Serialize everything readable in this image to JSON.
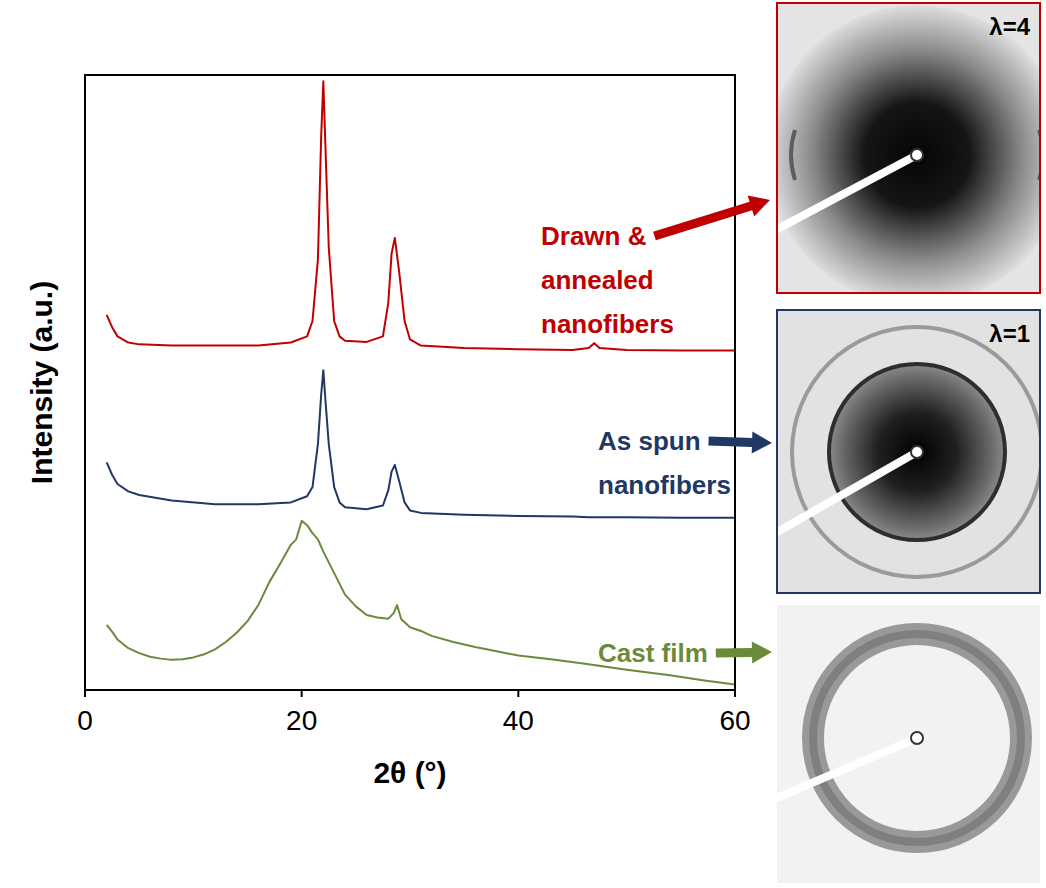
{
  "chart_data": {
    "type": "line",
    "x_label": "2θ (°)",
    "y_label": "Intensity (a.u.)",
    "xlim": [
      0,
      60
    ],
    "xticks": [
      0,
      20,
      40,
      60
    ],
    "ylim": [
      0,
      100
    ],
    "tick_labels": "x",
    "series": [
      {
        "name": "Drawn & annealed nanofibers",
        "color": "#c00000",
        "x": [
          2,
          2.5,
          3,
          4,
          5,
          8,
          12,
          16,
          19,
          20.5,
          21,
          21.5,
          21.8,
          22,
          22.2,
          22.5,
          23,
          23.5,
          24,
          26,
          27.5,
          28,
          28.3,
          28.6,
          29,
          29.5,
          30,
          31,
          35,
          40,
          45,
          46.5,
          47,
          47.5,
          50,
          55,
          60
        ],
        "values": [
          61,
          59,
          57.5,
          56.5,
          56.2,
          56,
          56,
          56,
          56.5,
          57.5,
          60,
          70,
          90,
          99,
          88,
          72,
          60,
          57.5,
          56.8,
          56.6,
          57.5,
          63,
          71,
          73.5,
          68,
          60,
          57,
          56,
          55.6,
          55.4,
          55.3,
          55.6,
          56.4,
          55.6,
          55.3,
          55.2,
          55.2
        ]
      },
      {
        "name": "As spun nanofibers",
        "color": "#1f3864",
        "x": [
          2,
          2.5,
          3,
          4,
          5,
          8,
          12,
          16,
          19,
          20.5,
          21,
          21.5,
          21.8,
          22,
          22.2,
          22.5,
          23,
          23.5,
          24,
          26,
          27.5,
          28,
          28.3,
          28.6,
          29,
          29.5,
          30,
          31,
          35,
          40,
          45,
          46.5,
          47,
          47.5,
          50,
          55,
          60
        ],
        "values": [
          37,
          35,
          33.5,
          32.3,
          31.7,
          30.8,
          30.2,
          30.2,
          30.5,
          31.5,
          33,
          40,
          48,
          52,
          47,
          40,
          33,
          30.5,
          29.7,
          29.4,
          30,
          32.5,
          35.5,
          36.6,
          34,
          30.5,
          29.2,
          28.8,
          28.5,
          28.3,
          28.2,
          28.1,
          28.1,
          28.1,
          28.1,
          28,
          28
        ]
      },
      {
        "name": "Cast film",
        "color": "#6b8a3a",
        "x": [
          2,
          2.5,
          3,
          4,
          5,
          6,
          7,
          8,
          9,
          10,
          11,
          12,
          13,
          14,
          15,
          16,
          17,
          18,
          19,
          19.5,
          20,
          20.5,
          21,
          21.5,
          22,
          23,
          24,
          25,
          26,
          27,
          28,
          28.5,
          28.8,
          29.2,
          30,
          31,
          32,
          34,
          36,
          38,
          40,
          43,
          46,
          50,
          54,
          57,
          60
        ],
        "values": [
          10.6,
          9.5,
          8.2,
          6.8,
          6,
          5.4,
          5.1,
          4.9,
          5,
          5.3,
          5.8,
          6.6,
          7.8,
          9.3,
          11.2,
          13.8,
          17.5,
          20.5,
          23.6,
          24.5,
          27.5,
          26.8,
          25.5,
          24.5,
          22.5,
          19,
          15.5,
          13.6,
          12.2,
          11.8,
          11.6,
          12.5,
          13.8,
          11.5,
          10.2,
          9.6,
          8.8,
          7.8,
          7,
          6.3,
          5.6,
          5,
          4.3,
          3.3,
          2.4,
          1.6,
          0.9
        ]
      }
    ]
  },
  "images": [
    {
      "label": "λ=4",
      "color": "#c00000"
    },
    {
      "label": "λ=1",
      "color": "#1f3864"
    },
    {
      "color": "#6b8a3a"
    }
  ]
}
